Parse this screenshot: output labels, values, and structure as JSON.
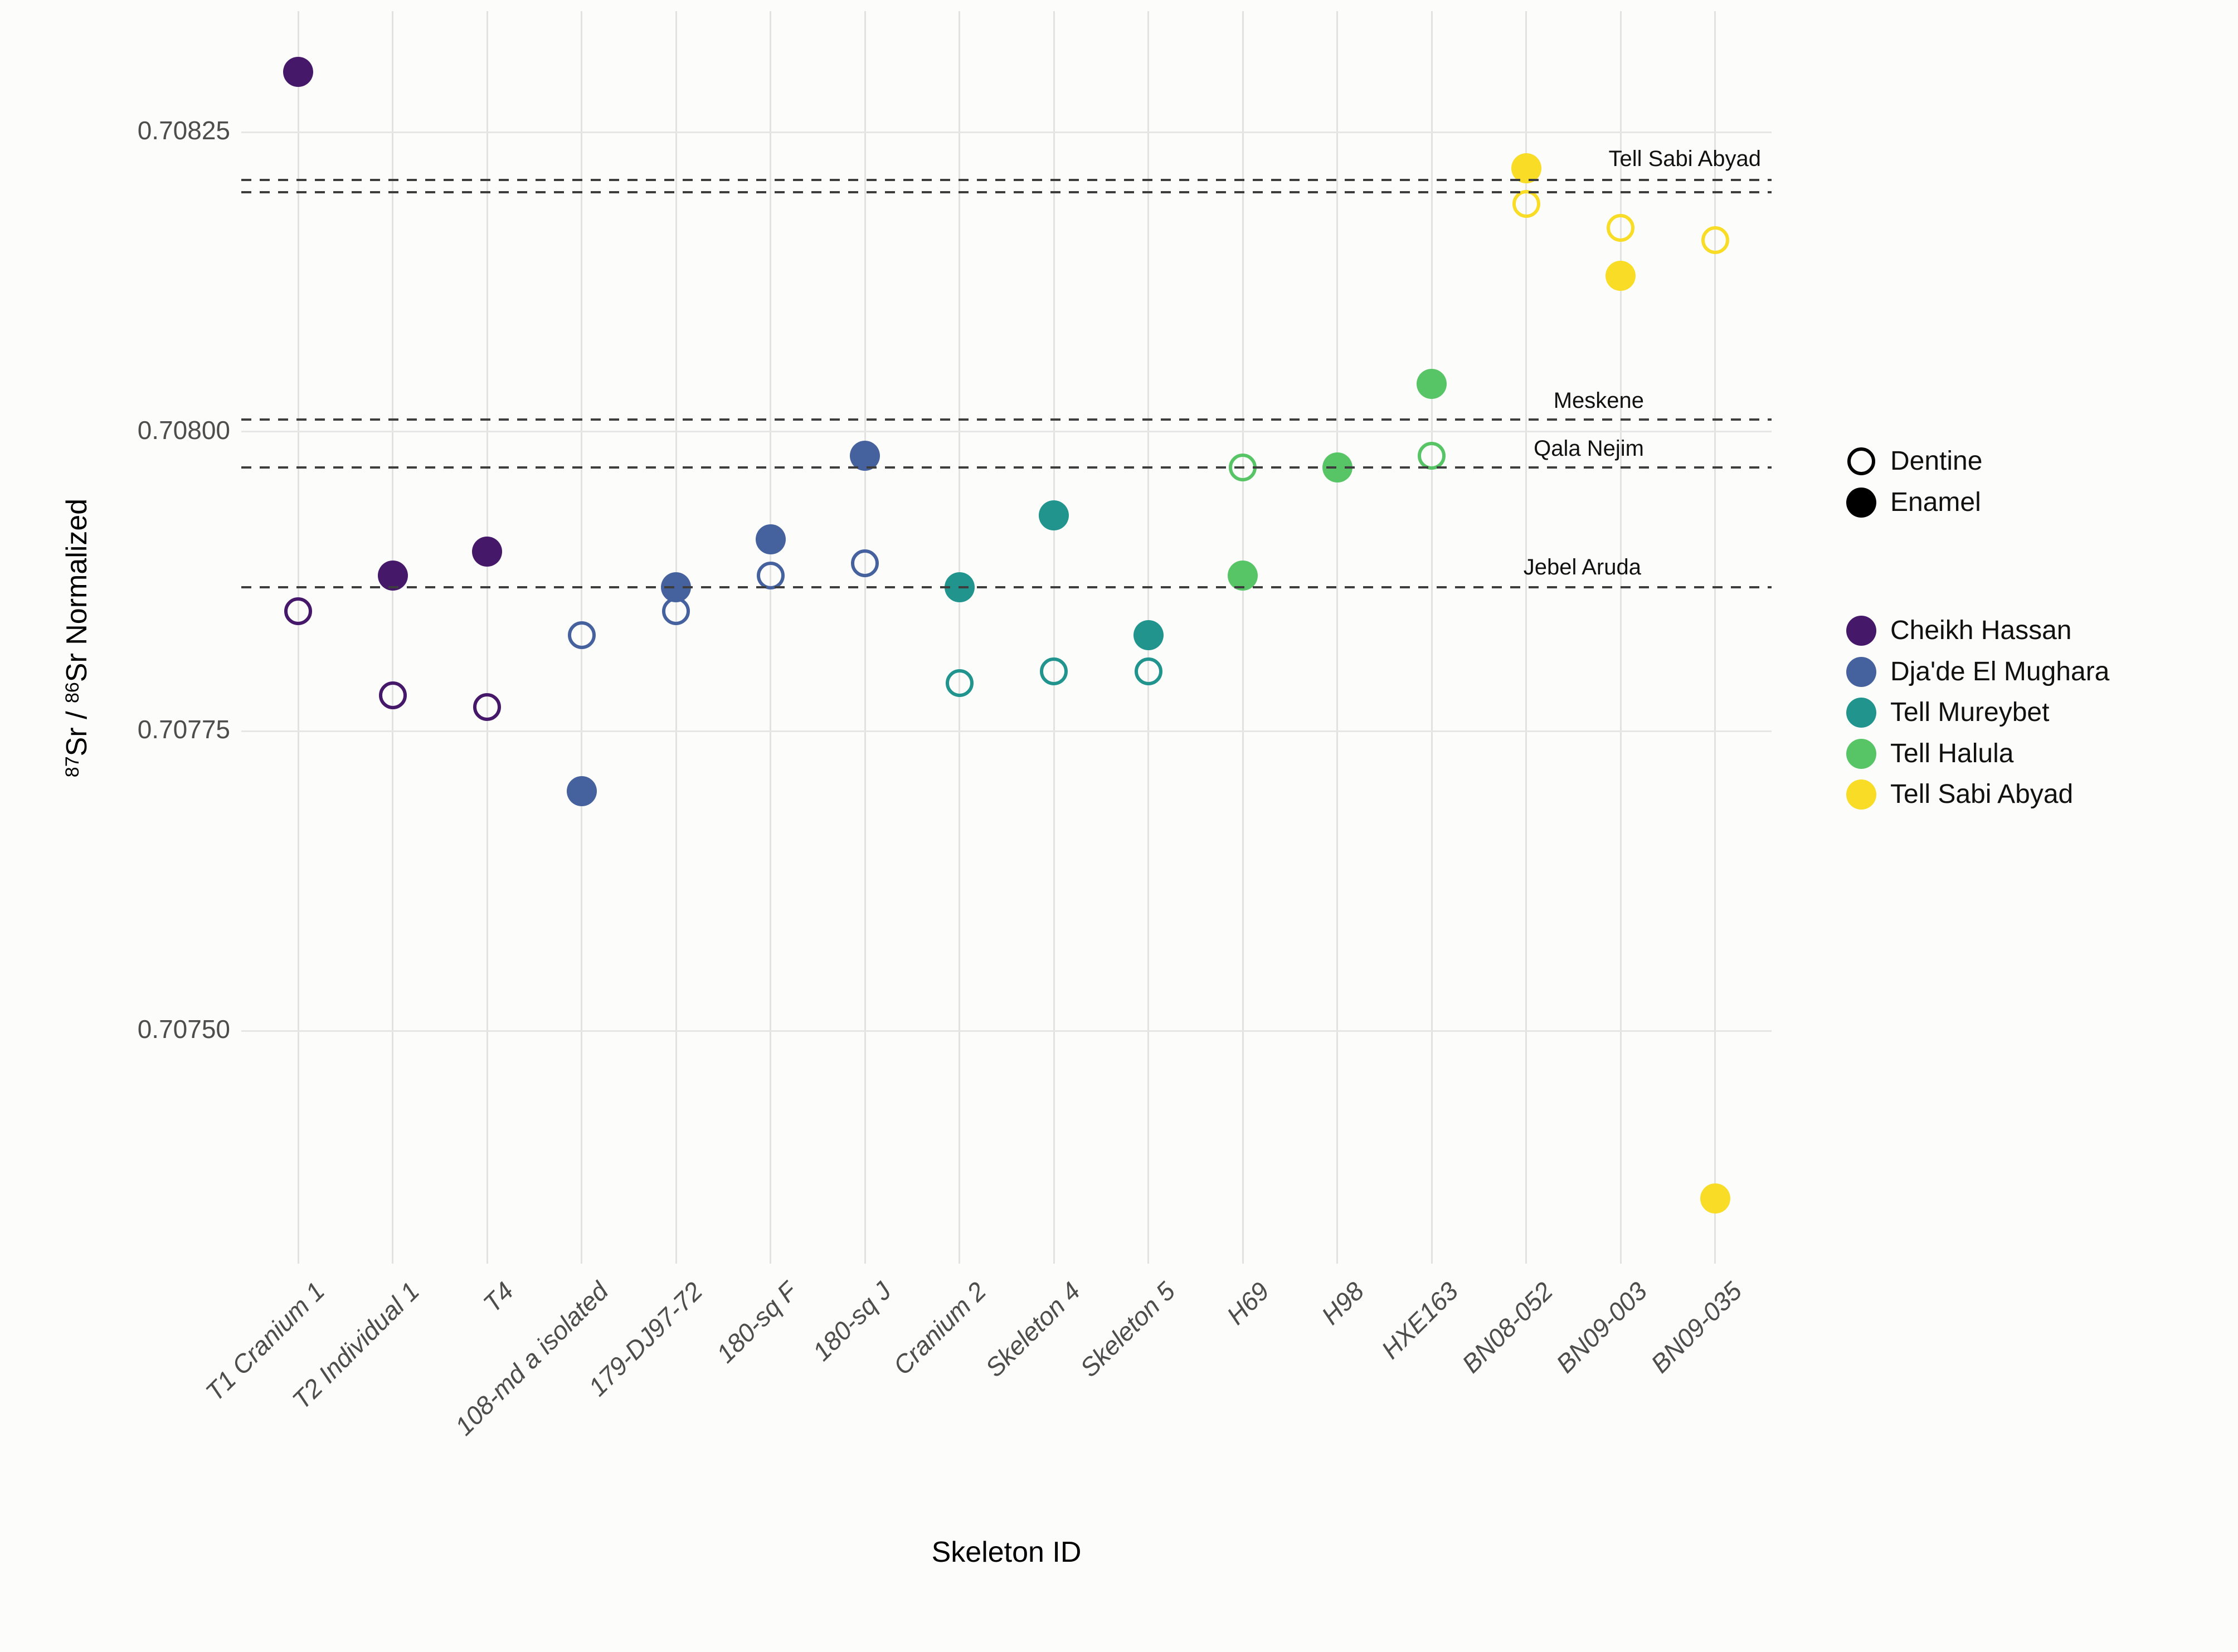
{
  "chart_data": {
    "type": "scatter",
    "title": "",
    "xlabel": "Skeleton ID",
    "ylabel": "87Sr/86Sr Normalized",
    "ylabel_parts": {
      "sup_a": "87",
      "text_a": "Sr / ",
      "sup_b": "86",
      "text_b": "Sr Normalized"
    },
    "ylim": [
      0.7073,
      0.70834
    ],
    "grid": true,
    "legend_position": "right",
    "y_ticks": [
      {
        "value": 0.70825,
        "label": "0.70825"
      },
      {
        "value": 0.708,
        "label": "0.70800"
      },
      {
        "value": 0.70775,
        "label": "0.70775"
      },
      {
        "value": 0.7075,
        "label": "0.70750"
      }
    ],
    "categories": [
      "T1 Cranium 1",
      "T2 Individual 1",
      "T4",
      "108-md a isolated",
      "179-DJ97-72",
      "180-sq F",
      "180-sq J",
      "Cranium 2",
      "Skeleton 4",
      "Skeleton 5",
      "H69",
      "H98",
      "HXE163",
      "BN08-052",
      "BN09-003",
      "BN09-035"
    ],
    "sites": [
      {
        "name": "Cheikh Hassan",
        "color": "#46186A"
      },
      {
        "name": "Dja'de El Mughara",
        "color": "#45619E"
      },
      {
        "name": "Tell Mureybet",
        "color": "#20948D"
      },
      {
        "name": "Tell Halula",
        "color": "#57C566"
      },
      {
        "name": "Tell Sabi Abyad",
        "color": "#F8DC25"
      }
    ],
    "tissue_legend": [
      {
        "label": "Dentine",
        "style": "open"
      },
      {
        "label": "Enamel",
        "style": "filled"
      }
    ],
    "reference_lines": [
      {
        "label": "Tell Sabi Abyad",
        "value": 0.70821
      },
      {
        "label": "",
        "value": 0.7082
      },
      {
        "label": "Meskene",
        "value": 0.70801
      },
      {
        "label": "Qala Nejim",
        "value": 0.70797
      },
      {
        "label": "Jebel Aruda",
        "value": 0.70787
      }
    ],
    "points": [
      {
        "skeleton": "T1 Cranium 1",
        "site": "Cheikh Hassan",
        "tissue": "Enamel",
        "value": 0.7083
      },
      {
        "skeleton": "T1 Cranium 1",
        "site": "Cheikh Hassan",
        "tissue": "Dentine",
        "value": 0.70785
      },
      {
        "skeleton": "T2 Individual 1",
        "site": "Cheikh Hassan",
        "tissue": "Enamel",
        "value": 0.70788
      },
      {
        "skeleton": "T2 Individual 1",
        "site": "Cheikh Hassan",
        "tissue": "Dentine",
        "value": 0.70778
      },
      {
        "skeleton": "T4",
        "site": "Cheikh Hassan",
        "tissue": "Enamel",
        "value": 0.7079
      },
      {
        "skeleton": "T4",
        "site": "Cheikh Hassan",
        "tissue": "Dentine",
        "value": 0.70777
      },
      {
        "skeleton": "108-md a isolated",
        "site": "Dja'de El Mughara",
        "tissue": "Dentine",
        "value": 0.70783
      },
      {
        "skeleton": "108-md a isolated",
        "site": "Dja'de El Mughara",
        "tissue": "Enamel",
        "value": 0.7077
      },
      {
        "skeleton": "179-DJ97-72",
        "site": "Dja'de El Mughara",
        "tissue": "Enamel",
        "value": 0.70787
      },
      {
        "skeleton": "179-DJ97-72",
        "site": "Dja'de El Mughara",
        "tissue": "Dentine",
        "value": 0.70785
      },
      {
        "skeleton": "180-sq F",
        "site": "Dja'de El Mughara",
        "tissue": "Enamel",
        "value": 0.70791
      },
      {
        "skeleton": "180-sq F",
        "site": "Dja'de El Mughara",
        "tissue": "Dentine",
        "value": 0.70788
      },
      {
        "skeleton": "180-sq J",
        "site": "Dja'de El Mughara",
        "tissue": "Enamel",
        "value": 0.70798
      },
      {
        "skeleton": "180-sq J",
        "site": "Dja'de El Mughara",
        "tissue": "Dentine",
        "value": 0.70789
      },
      {
        "skeleton": "Cranium 2",
        "site": "Tell Mureybet",
        "tissue": "Enamel",
        "value": 0.70787
      },
      {
        "skeleton": "Cranium 2",
        "site": "Tell Mureybet",
        "tissue": "Dentine",
        "value": 0.70779
      },
      {
        "skeleton": "Skeleton 4",
        "site": "Tell Mureybet",
        "tissue": "Enamel",
        "value": 0.70793
      },
      {
        "skeleton": "Skeleton 4",
        "site": "Tell Mureybet",
        "tissue": "Dentine",
        "value": 0.7078
      },
      {
        "skeleton": "Skeleton 5",
        "site": "Tell Mureybet",
        "tissue": "Enamel",
        "value": 0.70783
      },
      {
        "skeleton": "Skeleton 5",
        "site": "Tell Mureybet",
        "tissue": "Dentine",
        "value": 0.7078
      },
      {
        "skeleton": "H69",
        "site": "Tell Halula",
        "tissue": "Dentine",
        "value": 0.70797
      },
      {
        "skeleton": "H69",
        "site": "Tell Halula",
        "tissue": "Enamel",
        "value": 0.70788
      },
      {
        "skeleton": "H98",
        "site": "Tell Halula",
        "tissue": "Enamel",
        "value": 0.70797
      },
      {
        "skeleton": "HXE163",
        "site": "Tell Halula",
        "tissue": "Enamel",
        "value": 0.70804
      },
      {
        "skeleton": "HXE163",
        "site": "Tell Halula",
        "tissue": "Dentine",
        "value": 0.70798
      },
      {
        "skeleton": "BN08-052",
        "site": "Tell Sabi Abyad",
        "tissue": "Enamel",
        "value": 0.70822
      },
      {
        "skeleton": "BN08-052",
        "site": "Tell Sabi Abyad",
        "tissue": "Dentine",
        "value": 0.70819
      },
      {
        "skeleton": "BN09-003",
        "site": "Tell Sabi Abyad",
        "tissue": "Dentine",
        "value": 0.70817
      },
      {
        "skeleton": "BN09-003",
        "site": "Tell Sabi Abyad",
        "tissue": "Enamel",
        "value": 0.70813
      },
      {
        "skeleton": "BN09-035",
        "site": "Tell Sabi Abyad",
        "tissue": "Dentine",
        "value": 0.70816
      },
      {
        "skeleton": "BN09-035",
        "site": "Tell Sabi Abyad",
        "tissue": "Enamel",
        "value": 0.70736
      }
    ]
  }
}
